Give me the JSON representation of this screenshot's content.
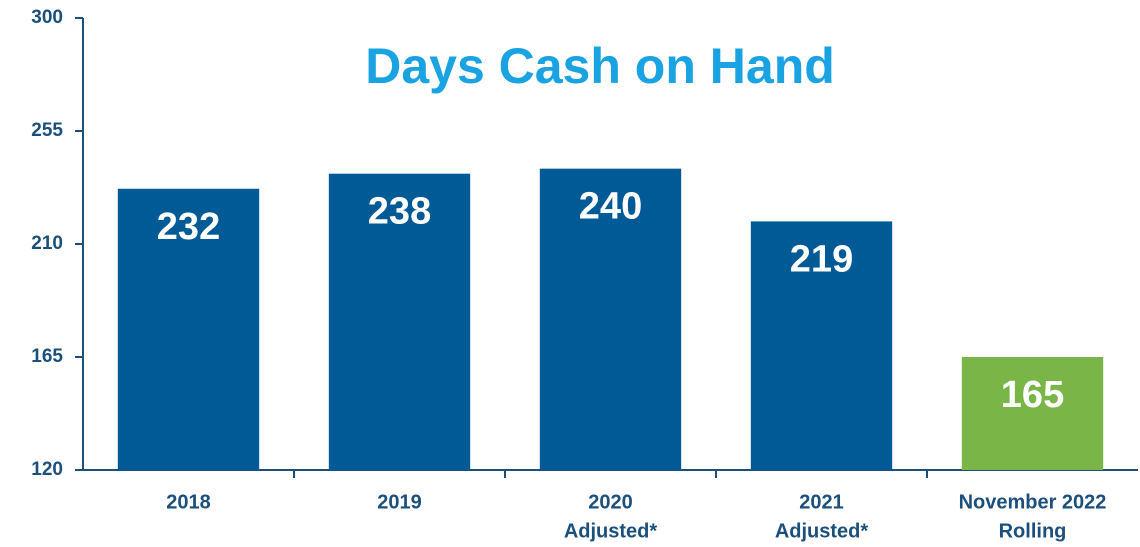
{
  "chart_data": {
    "type": "bar",
    "title": "Days Cash on Hand",
    "categories": [
      [
        "2018"
      ],
      [
        "2019"
      ],
      [
        "2020",
        "Adjusted*"
      ],
      [
        "2021",
        "Adjusted*"
      ],
      [
        "November 2022",
        "Rolling"
      ]
    ],
    "values": [
      232,
      238,
      240,
      219,
      165
    ],
    "colors": [
      "#005a96",
      "#005a96",
      "#005a96",
      "#005a96",
      "#7ab547"
    ],
    "ylim": [
      120,
      300
    ],
    "yticks": [
      120,
      165,
      210,
      255,
      300
    ],
    "grid": false
  }
}
